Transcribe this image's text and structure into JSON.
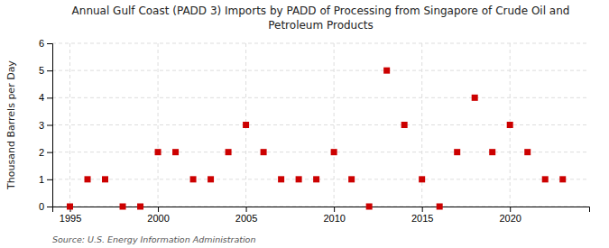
{
  "chart_data": {
    "type": "scatter",
    "title": "Annual Gulf Coast (PADD 3) Imports by PADD of Processing from Singapore of Crude Oil and\nPetroleum Products",
    "y_label": "Thousand Barrels per Day",
    "annotations": [
      "Source: U.S. Energy Information Administration"
    ],
    "x": [
      1995,
      1996,
      1997,
      1998,
      1999,
      2000,
      2001,
      2002,
      2003,
      2004,
      2005,
      2006,
      2007,
      2008,
      2009,
      2010,
      2011,
      2012,
      2013,
      2014,
      2015,
      2016,
      2017,
      2018,
      2019,
      2020,
      2021,
      2022,
      2023
    ],
    "values": [
      0,
      1,
      1,
      0,
      0,
      2,
      2,
      1,
      1,
      2,
      3,
      2,
      1,
      1,
      1,
      2,
      1,
      0,
      5,
      3,
      1,
      0,
      2,
      4,
      2,
      3,
      2,
      1,
      1
    ],
    "color": "#cc0000",
    "marker": "square",
    "xlim": [
      1994.0,
      2024.5
    ],
    "ylim": [
      0,
      6
    ],
    "yticks": [
      0,
      1,
      2,
      3,
      4,
      5,
      6
    ],
    "xticks": [
      1995,
      2000,
      2005,
      2010,
      2015,
      2020
    ],
    "grid": true
  }
}
